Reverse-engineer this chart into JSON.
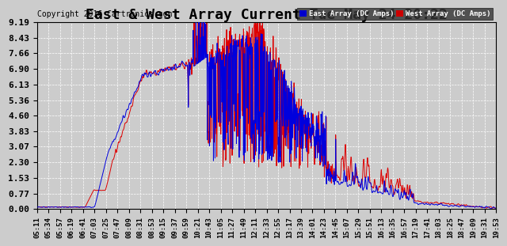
{
  "title": "East & West Array Current Tue May 24 20:22",
  "copyright": "Copyright 2016 Cartronics.com",
  "legend_east": "East Array (DC Amps)",
  "legend_west": "West Array (DC Amps)",
  "east_color": "#0000dd",
  "west_color": "#dd0000",
  "east_legend_bg": "#0000cc",
  "west_legend_bg": "#cc0000",
  "background_color": "#cccccc",
  "plot_bg": "#cccccc",
  "yticks": [
    0.0,
    0.77,
    1.53,
    2.3,
    3.07,
    3.83,
    4.6,
    5.36,
    6.13,
    6.9,
    7.66,
    8.43,
    9.19
  ],
  "ymin": 0.0,
  "ymax": 9.19,
  "xtick_labels": [
    "05:11",
    "05:34",
    "05:57",
    "06:19",
    "06:41",
    "07:03",
    "07:25",
    "07:47",
    "08:09",
    "08:31",
    "08:53",
    "09:15",
    "09:37",
    "09:59",
    "10:21",
    "10:43",
    "11:05",
    "11:27",
    "11:49",
    "12:11",
    "12:33",
    "12:55",
    "13:17",
    "13:39",
    "14:01",
    "14:23",
    "14:45",
    "15:07",
    "15:29",
    "15:51",
    "16:13",
    "16:35",
    "16:57",
    "17:19",
    "17:41",
    "18:03",
    "18:25",
    "18:47",
    "19:09",
    "19:31",
    "19:53"
  ],
  "title_fontsize": 13,
  "label_fontsize": 6.5,
  "ytick_fontsize": 8,
  "copyright_fontsize": 7
}
